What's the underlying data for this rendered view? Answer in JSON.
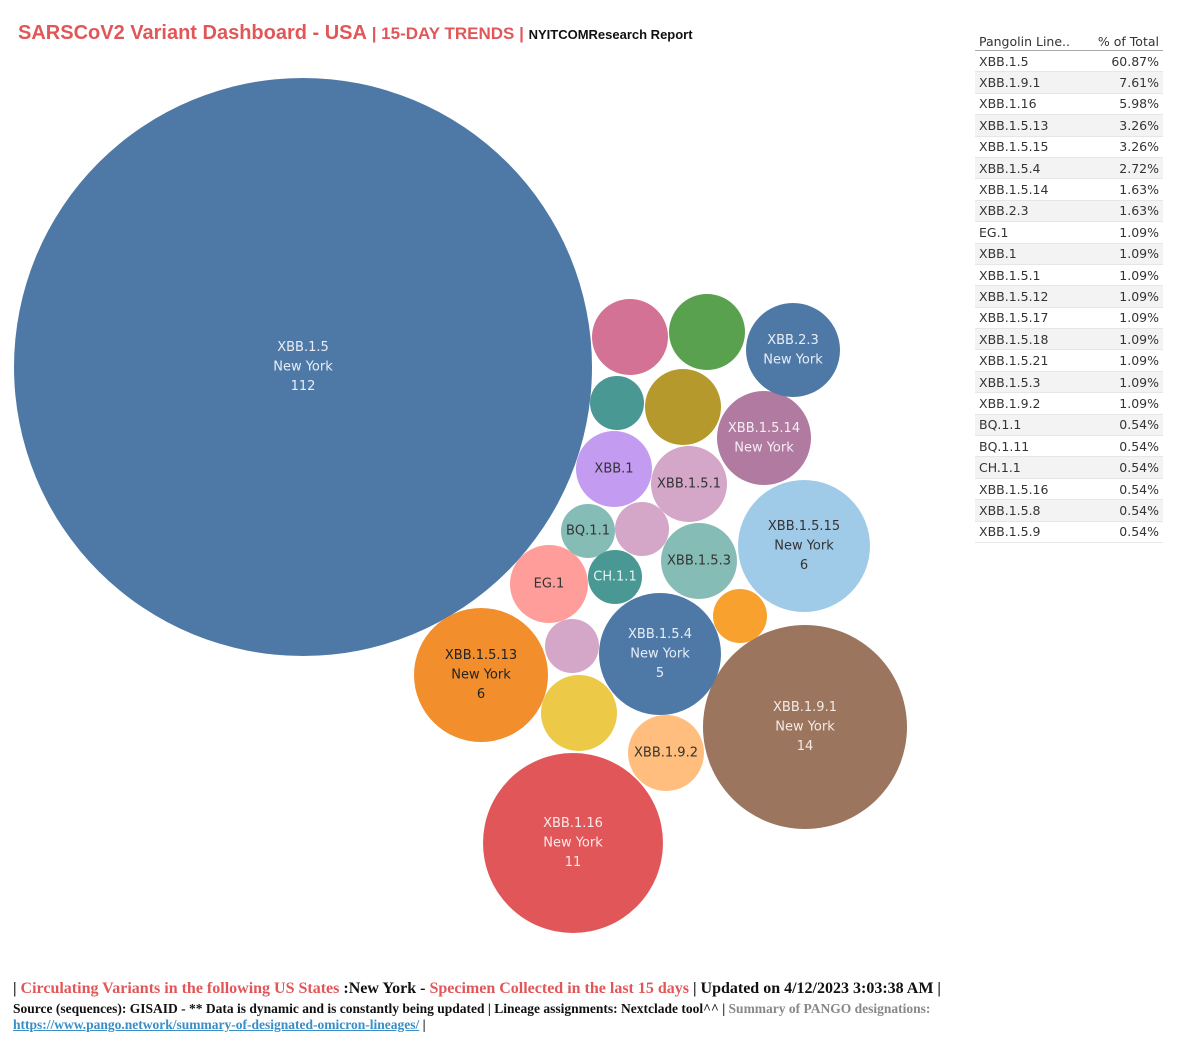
{
  "title": {
    "main": "SARSCoV2 Variant Dashboard - USA",
    "sep": " | ",
    "sub": "15-DAY TRENDS",
    "sep2": " | ",
    "report": "NYITCOMResearch Report"
  },
  "table": {
    "header_lineage": "Pangolin Line..",
    "header_pct": "% of Total",
    "rows": [
      {
        "lineage": "XBB.1.5",
        "pct": "60.87%"
      },
      {
        "lineage": "XBB.1.9.1",
        "pct": "7.61%"
      },
      {
        "lineage": "XBB.1.16",
        "pct": "5.98%"
      },
      {
        "lineage": "XBB.1.5.13",
        "pct": "3.26%"
      },
      {
        "lineage": "XBB.1.5.15",
        "pct": "3.26%"
      },
      {
        "lineage": "XBB.1.5.4",
        "pct": "2.72%"
      },
      {
        "lineage": "XBB.1.5.14",
        "pct": "1.63%"
      },
      {
        "lineage": "XBB.2.3",
        "pct": "1.63%"
      },
      {
        "lineage": "EG.1",
        "pct": "1.09%"
      },
      {
        "lineage": "XBB.1",
        "pct": "1.09%"
      },
      {
        "lineage": "XBB.1.5.1",
        "pct": "1.09%"
      },
      {
        "lineage": "XBB.1.5.12",
        "pct": "1.09%"
      },
      {
        "lineage": "XBB.1.5.17",
        "pct": "1.09%"
      },
      {
        "lineage": "XBB.1.5.18",
        "pct": "1.09%"
      },
      {
        "lineage": "XBB.1.5.21",
        "pct": "1.09%"
      },
      {
        "lineage": "XBB.1.5.3",
        "pct": "1.09%"
      },
      {
        "lineage": "XBB.1.9.2",
        "pct": "1.09%"
      },
      {
        "lineage": "BQ.1.1",
        "pct": "0.54%"
      },
      {
        "lineage": "BQ.1.11",
        "pct": "0.54%"
      },
      {
        "lineage": "CH.1.1",
        "pct": "0.54%"
      },
      {
        "lineage": "XBB.1.5.16",
        "pct": "0.54%"
      },
      {
        "lineage": "XBB.1.5.8",
        "pct": "0.54%"
      },
      {
        "lineage": "XBB.1.5.9",
        "pct": "0.54%"
      }
    ]
  },
  "chart_data": {
    "type": "bubble",
    "title": "SARSCoV2 Variant Dashboard - USA | 15-DAY TRENDS",
    "state": "New York",
    "series": [
      {
        "lineage": "XBB.1.5",
        "count": 112,
        "color": "#4e79a7",
        "label_color": "#e8eef6",
        "label_lines": [
          "XBB.1.5",
          "New York",
          "112"
        ]
      },
      {
        "lineage": "XBB.1.9.1",
        "count": 14,
        "color": "#9c755f",
        "label_color": "#f3ebe5",
        "label_lines": [
          "XBB.1.9.1",
          "New York",
          "14"
        ]
      },
      {
        "lineage": "XBB.1.16",
        "count": 11,
        "color": "#e15759",
        "label_color": "#fde9e9",
        "label_lines": [
          "XBB.1.16",
          "New York",
          "11"
        ]
      },
      {
        "lineage": "XBB.1.5.13",
        "count": 6,
        "color": "#f28e2b",
        "label_color": "#222222",
        "label_lines": [
          "XBB.1.5.13",
          "New York",
          "6"
        ]
      },
      {
        "lineage": "XBB.1.5.15",
        "count": 6,
        "color": "#a0cbe8",
        "label_color": "#333333",
        "label_lines": [
          "XBB.1.5.15",
          "New York",
          "6"
        ]
      },
      {
        "lineage": "XBB.1.5.4",
        "count": 5,
        "color": "#4e79a7",
        "label_color": "#e8eef6",
        "label_lines": [
          "XBB.1.5.4",
          "New York",
          "5"
        ]
      },
      {
        "lineage": "XBB.1.5.14",
        "count": 3,
        "color": "#b07aa1",
        "label_color": "#f6eef4",
        "label_lines": [
          "XBB.1.5.14",
          "New York"
        ]
      },
      {
        "lineage": "XBB.2.3",
        "count": 3,
        "color": "#4e79a7",
        "label_color": "#e8eef6",
        "label_lines": [
          "XBB.2.3",
          "New York"
        ]
      },
      {
        "lineage": "EG.1",
        "count": 2,
        "color": "#ff9d9a",
        "label_color": "#333333",
        "label_lines": [
          "EG.1"
        ]
      },
      {
        "lineage": "XBB.1",
        "count": 2,
        "color": "#c39bf0",
        "label_color": "#333333",
        "label_lines": [
          "XBB.1"
        ]
      },
      {
        "lineage": "XBB.1.5.1",
        "count": 2,
        "color": "#d4a6c8",
        "label_color": "#333333",
        "label_lines": [
          "XBB.1.5.1"
        ]
      },
      {
        "lineage": "XBB.1.5.12",
        "count": 2,
        "color": "#d37295",
        "label_color": "#333333",
        "label_lines": []
      },
      {
        "lineage": "XBB.1.5.17",
        "count": 2,
        "color": "#59a14f",
        "label_color": "#333333",
        "label_lines": []
      },
      {
        "lineage": "XBB.1.5.18",
        "count": 2,
        "color": "#b6992d",
        "label_color": "#333333",
        "label_lines": []
      },
      {
        "lineage": "XBB.1.5.21",
        "count": 2,
        "color": "#edc948",
        "label_color": "#333333",
        "label_lines": []
      },
      {
        "lineage": "XBB.1.5.3",
        "count": 2,
        "color": "#86bcb6",
        "label_color": "#333333",
        "label_lines": [
          "XBB.1.5.3"
        ]
      },
      {
        "lineage": "XBB.1.9.2",
        "count": 2,
        "color": "#ffbe7d",
        "label_color": "#333333",
        "label_lines": [
          "XBB.1.9.2"
        ]
      },
      {
        "lineage": "BQ.1.1",
        "count": 1,
        "color": "#86bcb6",
        "label_color": "#333333",
        "label_lines": [
          "BQ.1.1"
        ]
      },
      {
        "lineage": "BQ.1.11",
        "count": 1,
        "color": "#499894",
        "label_color": "#333333",
        "label_lines": []
      },
      {
        "lineage": "CH.1.1",
        "count": 1,
        "color": "#499894",
        "label_color": "#e6f2f1",
        "label_lines": [
          "CH.1.1"
        ]
      },
      {
        "lineage": "XBB.1.5.16",
        "count": 1,
        "color": "#d4a6c8",
        "label_color": "#333333",
        "label_lines": []
      },
      {
        "lineage": "XBB.1.5.8",
        "count": 1,
        "color": "#d4a6c8",
        "label_color": "#333333",
        "label_lines": []
      },
      {
        "lineage": "XBB.1.5.9",
        "count": 1,
        "color": "#f8a12e",
        "label_color": "#333333",
        "label_lines": []
      }
    ]
  },
  "footer": {
    "bar1": "| ",
    "circulating": "Circulating Variants in the following US States",
    "state_part": " :New York - ",
    "specimen": "Specimen Collected in the last 15 days",
    "updated": " | Updated on 4/12/2023 3:03:38 AM |",
    "source": "Source (sequences): GISAID - ** Data is dynamic and is constantly being updated | Lineage assignments: Nextclade tool^^ | ",
    "summary": "Summary of PANGO designations:",
    "link": "https://www.pango.network/summary-of-designated-omicron-lineages/",
    "end": " |"
  }
}
